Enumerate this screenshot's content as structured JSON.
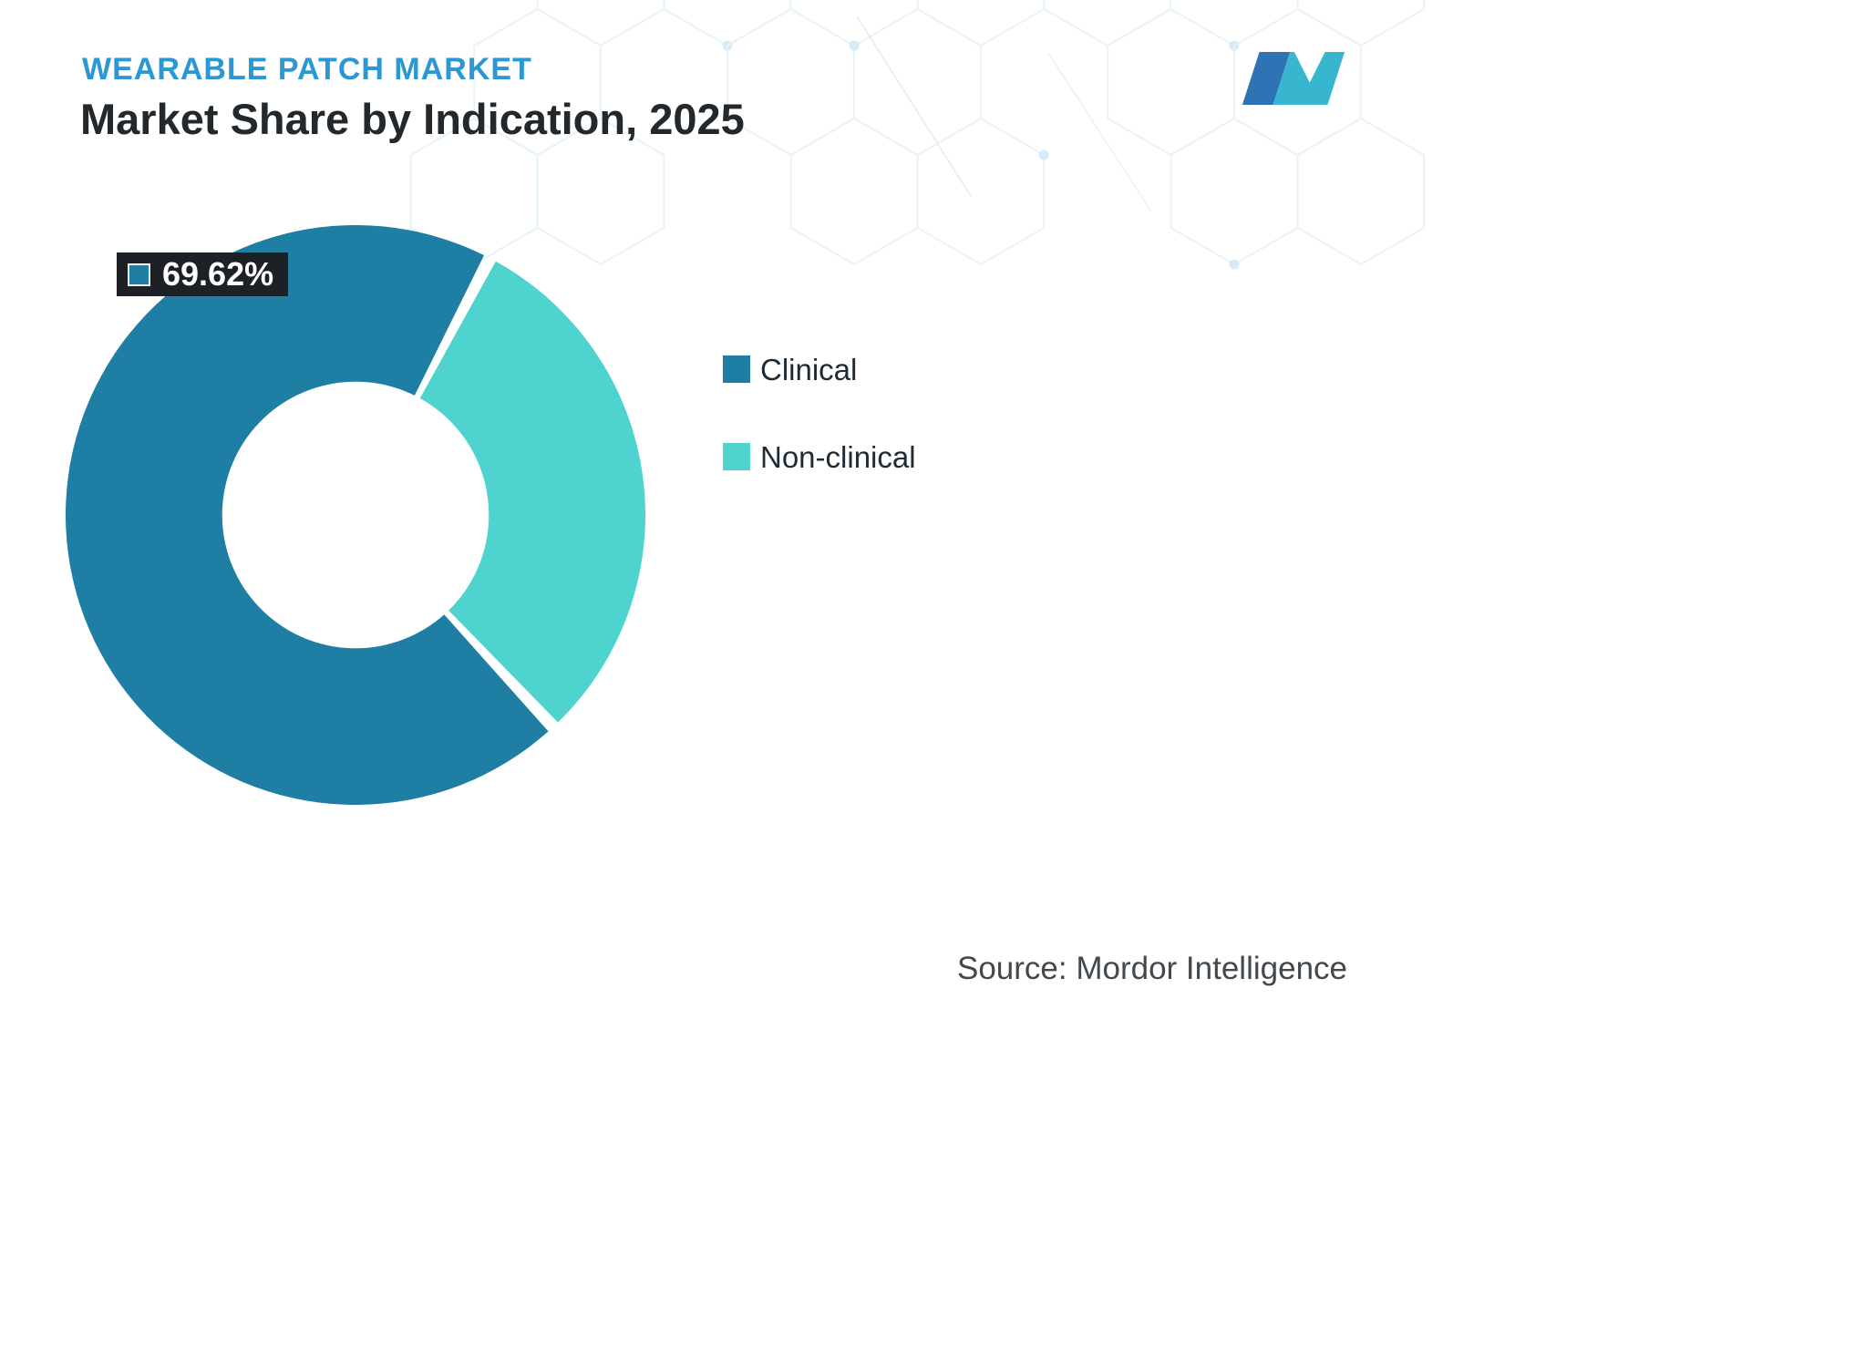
{
  "header": {
    "eyebrow": "WEARABLE PATCH MARKET",
    "title": "Market Share by Indication, 2025"
  },
  "brand": {
    "logo_name": "mordor-intelligence-logo"
  },
  "chart_data": {
    "type": "pie",
    "subtype": "donut",
    "title": "Market Share by Indication, 2025",
    "categories": [
      "Clinical",
      "Non-clinical"
    ],
    "values": [
      69.62,
      30.38
    ],
    "segments": [
      {
        "label": "Clinical",
        "value": 69.62,
        "color": "#1f7ea4"
      },
      {
        "label": "Non-clinical",
        "value": 30.38,
        "color": "#4fd3cf"
      }
    ],
    "data_label": {
      "text": "69.62%",
      "series": "Clinical"
    },
    "inner_radius_ratio": 0.46,
    "start_angle_deg": 137,
    "legend_position": "right",
    "total": 100
  },
  "callout": {
    "value": "69.62%",
    "swatch_color": "#1f7ea4"
  },
  "legend": {
    "items": [
      {
        "label": "Clinical",
        "color": "#1f7ea4"
      },
      {
        "label": "Non-clinical",
        "color": "#4fd3cf"
      }
    ]
  },
  "source": {
    "text": "Source: Mordor Intelligence"
  },
  "colors": {
    "accent_blue": "#2b97d3",
    "clinical": "#1f7ea4",
    "non_clinical": "#4fd3cf",
    "title_text": "#23282c",
    "callout_bg": "#1d2125"
  }
}
